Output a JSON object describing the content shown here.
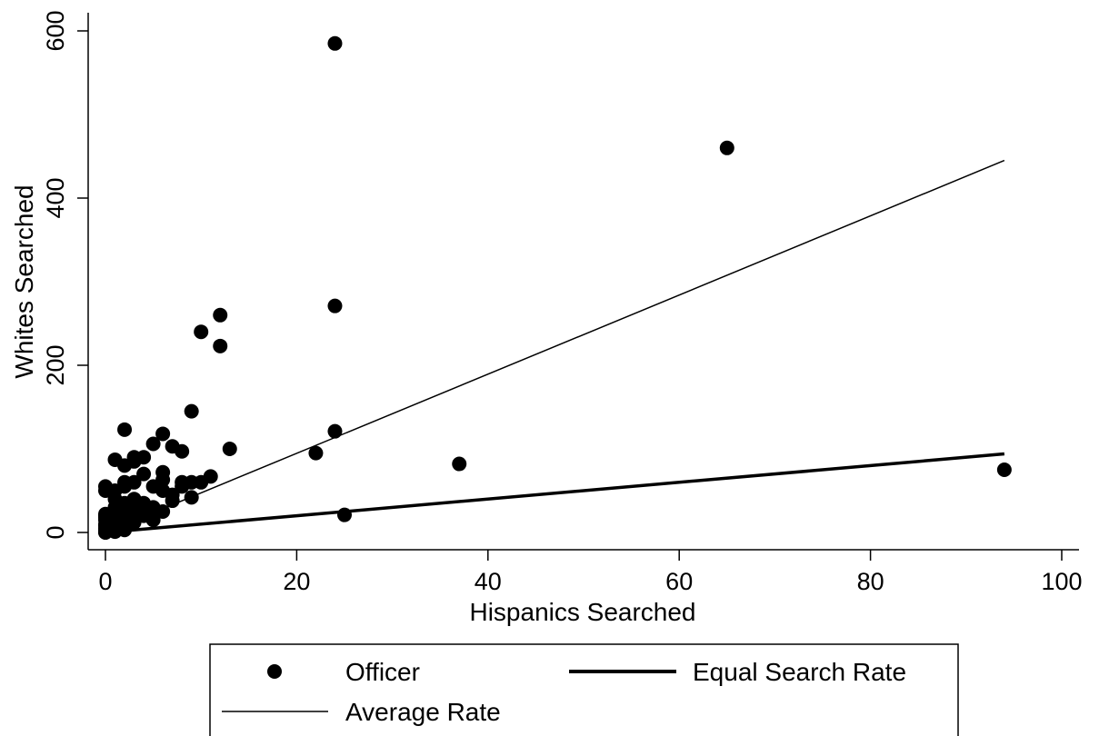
{
  "chart_data": {
    "type": "scatter",
    "xlabel": "Hispanics Searched",
    "ylabel": "Whites Searched",
    "xlim": [
      0,
      100
    ],
    "ylim": [
      0,
      600
    ],
    "xticks": [
      "0",
      "20",
      "40",
      "60",
      "80",
      "100"
    ],
    "yticks": [
      "0",
      "200",
      "400",
      "600"
    ],
    "grid": false,
    "legend_position": "bottom",
    "legend": {
      "officer": "Officer",
      "equal_rate": "Equal Search Rate",
      "average_rate": "Average Rate"
    },
    "series": [
      {
        "name": "Officer",
        "kind": "points",
        "x": [
          24,
          65,
          24,
          12,
          10,
          12,
          9,
          2,
          6,
          24,
          7,
          13,
          22,
          5,
          8,
          3,
          1,
          4,
          6,
          11,
          37,
          94,
          25,
          8,
          10,
          9,
          6,
          3,
          2,
          5,
          7,
          4,
          1,
          0,
          2,
          3,
          6,
          9,
          0,
          0,
          1,
          2,
          3,
          4,
          5,
          1,
          2,
          3,
          0,
          0,
          1,
          2,
          4,
          5,
          0,
          0,
          1,
          1,
          2,
          3,
          4,
          0,
          0,
          1,
          1,
          2,
          3,
          0,
          1,
          2,
          0,
          0,
          1,
          2,
          3,
          6,
          7,
          8
        ],
        "y": [
          585,
          460,
          271,
          260,
          240,
          223,
          145,
          123,
          118,
          121,
          103,
          100,
          95,
          106,
          97,
          90,
          87,
          90,
          72,
          67,
          82,
          75,
          21,
          60,
          60,
          60,
          63,
          60,
          60,
          55,
          45,
          70,
          50,
          55,
          80,
          85,
          50,
          42,
          50,
          22,
          40,
          55,
          40,
          35,
          30,
          30,
          35,
          25,
          20,
          15,
          20,
          18,
          20,
          15,
          10,
          8,
          12,
          8,
          15,
          22,
          25,
          5,
          3,
          5,
          2,
          3,
          12,
          0,
          1,
          5,
          0,
          18,
          25,
          30,
          18,
          25,
          38,
          55
        ],
        "color": "#000000"
      },
      {
        "name": "Average Rate",
        "kind": "line",
        "x": [
          0,
          94
        ],
        "y": [
          0,
          445
        ],
        "color": "#000000"
      },
      {
        "name": "Equal Search Rate",
        "kind": "line",
        "x": [
          0,
          94
        ],
        "y": [
          0,
          94
        ],
        "color": "#000000"
      }
    ]
  }
}
